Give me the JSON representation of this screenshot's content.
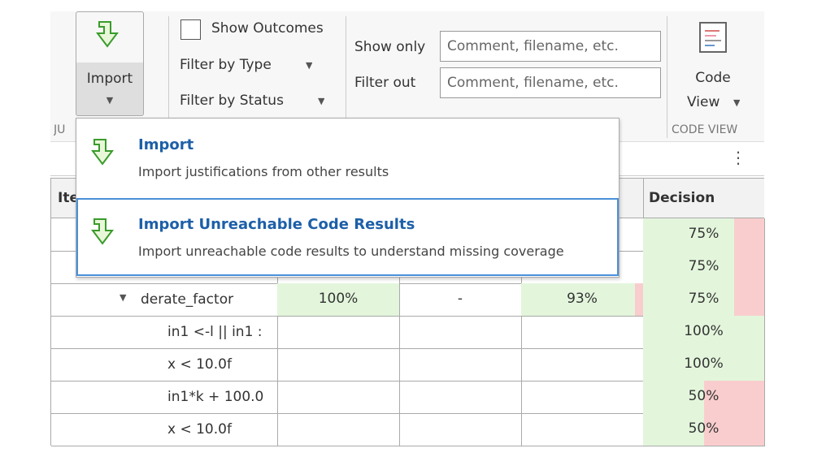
{
  "toolbar": {
    "import": "Import",
    "section_label": "JU",
    "show_outcomes": "Show Outcomes",
    "filter_by_type": "Filter by Type",
    "filter_by_status": "Filter by Status",
    "show_only": "Show only",
    "filter_out": "Filter out",
    "show_only_placeholder": "Comment, filename, etc.",
    "filter_out_placeholder": "Comment, filename, etc.",
    "code": "Code",
    "view": "View",
    "code_view_section": "CODE VIEW"
  },
  "menu": {
    "items": [
      {
        "title": "Import",
        "description": "Import justifications from other results"
      },
      {
        "title": "Import Unreachable Code Results",
        "description": "Import unreachable code results to understand missing coverage"
      }
    ]
  },
  "table": {
    "headers": [
      "Ite",
      "Decision"
    ],
    "rows": [
      {
        "decision": "75%"
      },
      {
        "decision": "75%"
      },
      {
        "item": "derate_factor",
        "cells": [
          "100%",
          "-",
          "93%"
        ],
        "decision": "75%"
      },
      {
        "item": "in1 <-l || in1 :",
        "decision": "100%"
      },
      {
        "item": "x < 10.0f",
        "decision": "100%"
      },
      {
        "item": "in1*k + 100.0",
        "decision": "50%"
      },
      {
        "item": "x < 10.0f",
        "decision": "50%"
      }
    ]
  }
}
